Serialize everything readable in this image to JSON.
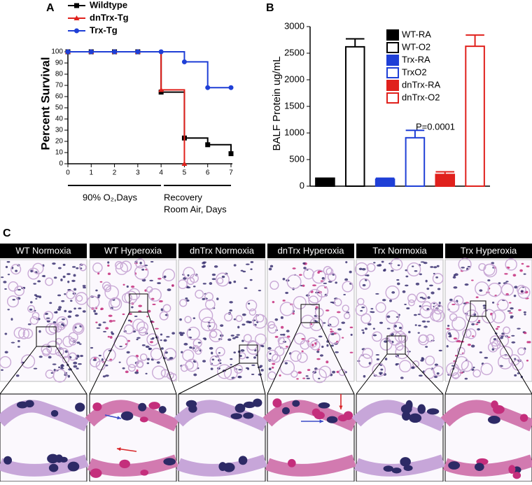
{
  "chart_data": [
    {
      "type": "line",
      "panel": "A",
      "step": true,
      "ylabel": "Percent  Survival",
      "x": [
        0,
        1,
        2,
        3,
        4,
        5,
        6,
        7
      ],
      "xlim": [
        0,
        7
      ],
      "xticks": [
        0,
        1,
        2,
        3,
        4,
        5,
        6,
        7
      ],
      "ylim": [
        0,
        100
      ],
      "yticks": [
        0,
        10,
        20,
        30,
        40,
        50,
        60,
        70,
        80,
        90,
        100
      ],
      "series": [
        {
          "name": "Wildtype",
          "color": "#000000",
          "marker": "square",
          "values": [
            100,
            100,
            100,
            100,
            64,
            23,
            17,
            9
          ]
        },
        {
          "name": "dnTrx-Tg",
          "color": "#e0211c",
          "marker": "triangle",
          "values": [
            100,
            100,
            100,
            100,
            66,
            0,
            null,
            null
          ]
        },
        {
          "name": "Trx-Tg",
          "color": "#1f3fd6",
          "marker": "circle",
          "values": [
            100,
            100,
            100,
            100,
            100,
            91,
            68,
            68
          ]
        }
      ],
      "annotations": [
        "90% O₂,Days",
        "Recovery",
        "Room Air, Days"
      ]
    },
    {
      "type": "bar",
      "panel": "B",
      "ylabel": "BALF Protein ug/mL",
      "ylim": [
        0,
        3000
      ],
      "yticks": [
        0,
        500,
        1000,
        1500,
        2000,
        2500,
        3000
      ],
      "series": [
        {
          "name": "WT-RA",
          "color": "#000000",
          "filled": true,
          "values": [
            150
          ],
          "errors": [
            0
          ]
        },
        {
          "name": "WT-O2",
          "color": "#000000",
          "filled": false,
          "values": [
            2620
          ],
          "errors": [
            150
          ]
        },
        {
          "name": "Trx-RA",
          "color": "#1f3fd6",
          "filled": true,
          "values": [
            130
          ],
          "errors": [
            20
          ]
        },
        {
          "name": "TrxO2",
          "color": "#1f3fd6",
          "filled": false,
          "values": [
            910
          ],
          "errors": [
            140
          ]
        },
        {
          "name": "dnTrx-RA",
          "color": "#e0211c",
          "filled": true,
          "values": [
            220
          ],
          "errors": [
            50
          ]
        },
        {
          "name": "dnTrx-O2",
          "color": "#e0211c",
          "filled": false,
          "values": [
            2630
          ],
          "errors": [
            210
          ]
        }
      ],
      "annotations": [
        "P=0.0001",
        "*"
      ]
    }
  ],
  "panel_c": {
    "label": "C",
    "titles": [
      "WT Normoxia",
      "WT Hyperoxia",
      "dnTrx Normoxia",
      "dnTrx Hyperoxia",
      "Trx Normoxia",
      "Trx Hyperoxia"
    ]
  }
}
